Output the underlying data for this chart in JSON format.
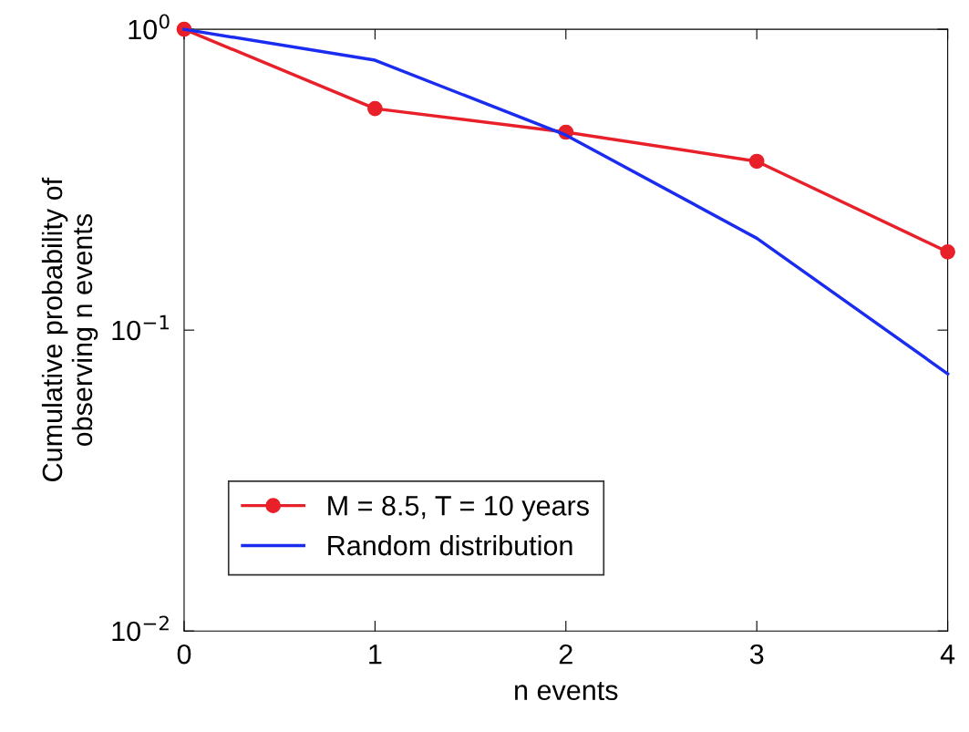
{
  "chart_data": {
    "type": "line",
    "xlabel": "n events",
    "ylabel": "Cumulative probability of\nobserving n events",
    "x": [
      0,
      1,
      2,
      3,
      4
    ],
    "series": [
      {
        "name": "M = 8.5, T = 10 years",
        "color": "#e8202a",
        "values": [
          1.0,
          0.545,
          0.455,
          0.364,
          0.182
        ],
        "marker": "circle"
      },
      {
        "name": "Random distribution",
        "color": "#1a2cf0",
        "values": [
          1.0,
          0.789,
          0.445,
          0.202,
          0.0716
        ],
        "marker": "none"
      }
    ],
    "log": true,
    "xlim": [
      0,
      4
    ],
    "ylim": [
      0.01,
      1
    ],
    "xticks": [
      0,
      1,
      2,
      3,
      4
    ],
    "yticks": [
      {
        "value": 0.01,
        "label": "10$^{−2}$"
      },
      {
        "value": 0.1,
        "label": "10$^{−1}$"
      },
      {
        "value": 1,
        "label": "10$^{0}$"
      }
    ],
    "grid": false,
    "legend": "bottom left",
    "line_style": "solid"
  }
}
